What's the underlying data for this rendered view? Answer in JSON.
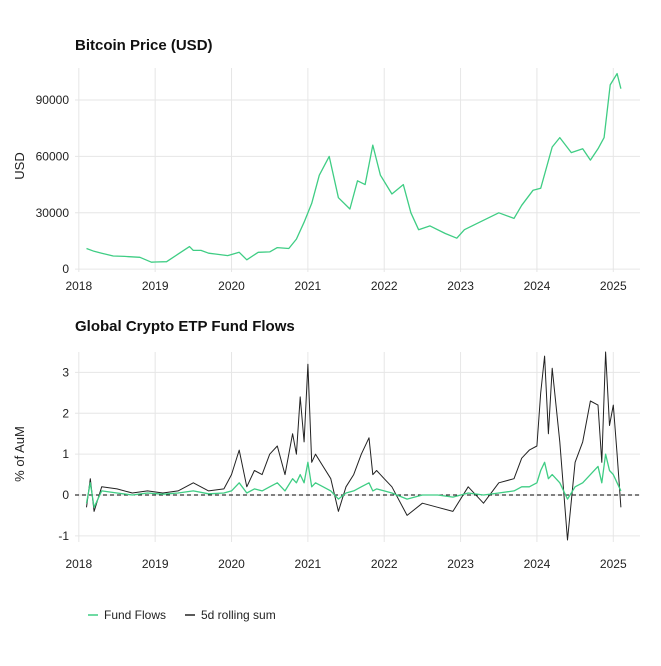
{
  "colors": {
    "btc": "#3fcd84",
    "flows": "#3fcd84",
    "rolling": "#222222",
    "grid": "#e6e6e6",
    "zero": "#000000"
  },
  "chart_data": [
    {
      "type": "line",
      "title": "Bitcoin Price (USD)",
      "ylabel": "USD",
      "xlim": [
        2017.95,
        2025.35
      ],
      "ylim": [
        -1500,
        107000
      ],
      "yticks": [
        0,
        30000,
        60000,
        90000
      ],
      "ytick_labels": [
        "0",
        "30000",
        "60000",
        "90000"
      ],
      "xticks": [
        2018,
        2019,
        2020,
        2021,
        2022,
        2023,
        2024,
        2025
      ],
      "xtick_labels": [
        "2018",
        "2019",
        "2020",
        "2021",
        "2022",
        "2023",
        "2024",
        "2025"
      ],
      "grid": true,
      "series": [
        {
          "color": "#3fcd84",
          "x": [
            2018.1,
            2018.2,
            2018.3,
            2018.45,
            2018.6,
            2018.8,
            2018.95,
            2019.0,
            2019.15,
            2019.3,
            2019.45,
            2019.5,
            2019.6,
            2019.7,
            2019.8,
            2019.95,
            2020.1,
            2020.2,
            2020.35,
            2020.5,
            2020.6,
            2020.75,
            2020.85,
            2020.95,
            2021.05,
            2021.15,
            2021.28,
            2021.4,
            2021.55,
            2021.65,
            2021.75,
            2021.85,
            2021.95,
            2022.1,
            2022.25,
            2022.35,
            2022.45,
            2022.6,
            2022.8,
            2022.95,
            2023.05,
            2023.2,
            2023.35,
            2023.5,
            2023.7,
            2023.8,
            2023.95,
            2024.05,
            2024.2,
            2024.3,
            2024.45,
            2024.6,
            2024.7,
            2024.8,
            2024.88,
            2024.96,
            2025.05,
            2025.1
          ],
          "y": [
            11000,
            9500,
            8500,
            7000,
            6800,
            6300,
            3700,
            3800,
            4000,
            8000,
            12000,
            10000,
            10000,
            8500,
            8000,
            7200,
            9000,
            5000,
            9000,
            9200,
            11500,
            11000,
            16000,
            25000,
            35000,
            50000,
            60000,
            38000,
            32000,
            47000,
            45000,
            66000,
            50000,
            40000,
            45000,
            30000,
            21000,
            23000,
            19000,
            16500,
            21000,
            24000,
            27000,
            30000,
            27000,
            34000,
            42000,
            43000,
            65000,
            70000,
            62000,
            64000,
            58000,
            64000,
            70000,
            98000,
            104000,
            96000
          ]
        }
      ]
    },
    {
      "type": "line",
      "title": "Global Crypto ETP Fund Flows",
      "ylabel": "% of AuM",
      "xlim": [
        2017.95,
        2025.35
      ],
      "ylim": [
        -1.15,
        3.5
      ],
      "yticks": [
        -1,
        0,
        1,
        2,
        3
      ],
      "ytick_labels": [
        "-1",
        "0",
        "1",
        "2",
        "3"
      ],
      "xticks": [
        2018,
        2019,
        2020,
        2021,
        2022,
        2023,
        2024,
        2025
      ],
      "xtick_labels": [
        "2018",
        "2019",
        "2020",
        "2021",
        "2022",
        "2023",
        "2024",
        "2025"
      ],
      "grid": true,
      "zero_line": "dashed",
      "legend_position": "bottom-left",
      "series": [
        {
          "name": "Fund Flows",
          "color": "#3fcd84",
          "x": [
            2018.1,
            2018.15,
            2018.2,
            2018.3,
            2018.5,
            2018.7,
            2018.9,
            2019.1,
            2019.3,
            2019.5,
            2019.7,
            2019.9,
            2020.0,
            2020.1,
            2020.2,
            2020.3,
            2020.4,
            2020.5,
            2020.6,
            2020.7,
            2020.8,
            2020.85,
            2020.9,
            2020.95,
            2021.0,
            2021.05,
            2021.1,
            2021.2,
            2021.3,
            2021.4,
            2021.5,
            2021.6,
            2021.7,
            2021.8,
            2021.85,
            2021.9,
            2022.0,
            2022.1,
            2022.3,
            2022.5,
            2022.7,
            2022.9,
            2023.1,
            2023.3,
            2023.5,
            2023.7,
            2023.8,
            2023.9,
            2024.0,
            2024.05,
            2024.1,
            2024.15,
            2024.2,
            2024.3,
            2024.4,
            2024.5,
            2024.6,
            2024.7,
            2024.8,
            2024.85,
            2024.9,
            2024.95,
            2025.0,
            2025.05,
            2025.1
          ],
          "y": [
            -0.2,
            0.3,
            -0.3,
            0.1,
            0.05,
            0.0,
            0.05,
            0.02,
            0.05,
            0.1,
            0.03,
            0.05,
            0.1,
            0.3,
            0.05,
            0.15,
            0.1,
            0.2,
            0.3,
            0.1,
            0.4,
            0.3,
            0.5,
            0.3,
            0.8,
            0.2,
            0.3,
            0.2,
            0.1,
            -0.1,
            0.05,
            0.1,
            0.2,
            0.3,
            0.1,
            0.15,
            0.1,
            0.05,
            -0.1,
            0.0,
            0.0,
            -0.05,
            0.05,
            0.0,
            0.05,
            0.1,
            0.2,
            0.2,
            0.3,
            0.6,
            0.8,
            0.4,
            0.5,
            0.3,
            -0.1,
            0.2,
            0.3,
            0.5,
            0.7,
            0.3,
            1.0,
            0.6,
            0.5,
            0.3,
            0.1
          ]
        },
        {
          "name": "5d rolling sum",
          "color": "#222222",
          "x": [
            2018.1,
            2018.15,
            2018.2,
            2018.3,
            2018.5,
            2018.7,
            2018.9,
            2019.1,
            2019.3,
            2019.5,
            2019.7,
            2019.9,
            2020.0,
            2020.1,
            2020.2,
            2020.3,
            2020.4,
            2020.5,
            2020.6,
            2020.7,
            2020.8,
            2020.85,
            2020.9,
            2020.95,
            2021.0,
            2021.05,
            2021.1,
            2021.2,
            2021.3,
            2021.4,
            2021.5,
            2021.6,
            2021.7,
            2021.8,
            2021.85,
            2021.9,
            2022.0,
            2022.1,
            2022.3,
            2022.5,
            2022.7,
            2022.9,
            2023.1,
            2023.3,
            2023.5,
            2023.7,
            2023.8,
            2023.9,
            2024.0,
            2024.05,
            2024.1,
            2024.15,
            2024.2,
            2024.3,
            2024.4,
            2024.5,
            2024.6,
            2024.7,
            2024.8,
            2024.85,
            2024.9,
            2024.95,
            2025.0,
            2025.05,
            2025.1
          ],
          "y": [
            -0.3,
            0.4,
            -0.4,
            0.2,
            0.15,
            0.05,
            0.1,
            0.05,
            0.1,
            0.3,
            0.1,
            0.15,
            0.5,
            1.1,
            0.2,
            0.6,
            0.5,
            1.0,
            1.2,
            0.5,
            1.5,
            1.0,
            2.4,
            1.3,
            3.2,
            0.8,
            1.0,
            0.7,
            0.4,
            -0.4,
            0.2,
            0.5,
            1.0,
            1.4,
            0.5,
            0.6,
            0.4,
            0.2,
            -0.5,
            -0.2,
            -0.3,
            -0.4,
            0.2,
            -0.2,
            0.3,
            0.4,
            0.9,
            1.1,
            1.2,
            2.5,
            3.4,
            1.5,
            3.1,
            1.3,
            -1.1,
            0.8,
            1.3,
            2.3,
            2.2,
            0.8,
            3.5,
            1.7,
            2.2,
            1.0,
            -0.3
          ]
        }
      ]
    }
  ]
}
